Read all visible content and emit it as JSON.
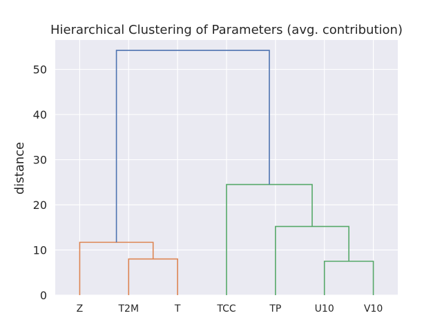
{
  "chart_data": {
    "type": "dendrogram",
    "title": "Hierarchical Clustering of Parameters (avg. contribution)",
    "xlabel": "",
    "ylabel": "distance",
    "leaves": [
      "Z",
      "T2M",
      "T",
      "TCC",
      "TP",
      "U10",
      "V10"
    ],
    "ylim": [
      0,
      56.5
    ],
    "yticks": [
      0,
      10,
      20,
      30,
      40,
      50
    ],
    "grid": true,
    "background": "#eaeaf2",
    "grid_color": "#ffffff",
    "links": [
      {
        "left": "T2M",
        "right": "T",
        "height": 8.0,
        "color": "#dd8452"
      },
      {
        "left": "Z",
        "right": "T2M+T",
        "height": 11.7,
        "color": "#dd8452"
      },
      {
        "left": "U10",
        "right": "V10",
        "height": 7.5,
        "color": "#55a868"
      },
      {
        "left": "TP",
        "right": "U10+V10",
        "height": 15.2,
        "color": "#55a868"
      },
      {
        "left": "TCC",
        "right": "TP+U10+V10",
        "height": 24.5,
        "color": "#55a868"
      },
      {
        "left": "Z+T2M+T",
        "right": "TCC+TP+U10+V10",
        "height": 54.2,
        "color": "#4c72b0"
      }
    ]
  }
}
